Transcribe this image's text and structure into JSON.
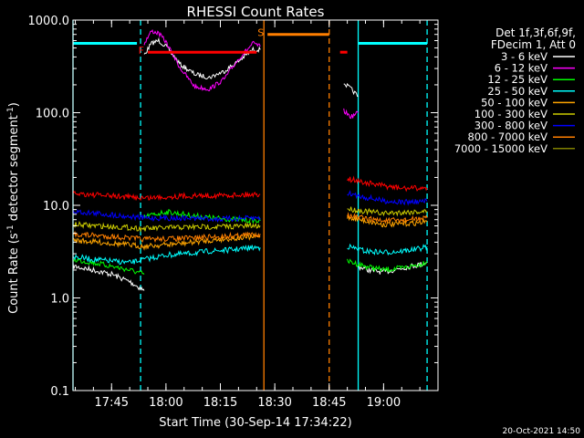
{
  "chart_data": {
    "type": "line",
    "title": "RHESSI Count Rates",
    "xlabel": "Start Time (30-Sep-14 17:34:22)",
    "ylabel_main": "Count Rate (s",
    "ylabel_sup": "-1",
    "ylabel_tail": " detector segment",
    "ylabel_sup2": "-1",
    "ylabel_close": ")",
    "y_scale": "log",
    "ylim": [
      0.1,
      1000
    ],
    "xlim": [
      "17:34:22",
      "19:15:00"
    ],
    "x_ticks": [
      {
        "t": "17:45",
        "label": "17:45"
      },
      {
        "t": "18:00",
        "label": "18:00"
      },
      {
        "t": "18:15",
        "label": "18:15"
      },
      {
        "t": "18:30",
        "label": "18:30"
      },
      {
        "t": "18:45",
        "label": "18:45"
      },
      {
        "t": "19:00",
        "label": "19:00"
      }
    ],
    "y_ticks": [
      {
        "v": 0.1,
        "label": "0.1"
      },
      {
        "v": 1.0,
        "label": "1.0"
      },
      {
        "v": 10.0,
        "label": "10.0"
      },
      {
        "v": 100.0,
        "label": "100.0"
      },
      {
        "v": 1000.0,
        "label": "1000.0"
      }
    ],
    "legend_header": [
      "Det 1f,3f,6f,9f,",
      "FDecim 1, Att 0"
    ],
    "legend_placement": "right",
    "footer": "20-Oct-2021 14:50",
    "series": [
      {
        "name": "3 - 6 keV",
        "color": "#ffffff",
        "segments": [
          {
            "x": [
              "17:34:22",
              "17:40",
              "17:45",
              "17:50",
              "17:54"
            ],
            "y": [
              2.2,
              2.0,
              1.8,
              1.5,
              1.2
            ]
          },
          {
            "x": [
              "17:54",
              "17:56",
              "17:58",
              "18:00",
              "18:04",
              "18:08",
              "18:12",
              "18:16",
              "18:20",
              "18:24",
              "18:26"
            ],
            "y": [
              420,
              560,
              600,
              520,
              330,
              260,
              240,
              280,
              360,
              480,
              480
            ]
          },
          {
            "x": [
              "18:49",
              "18:51",
              "18:53"
            ],
            "y": [
              210,
              180,
              150
            ]
          },
          {
            "x": [
              "18:53",
              "18:56",
              "19:00",
              "19:05",
              "19:10",
              "19:12"
            ],
            "y": [
              2.2,
              2.0,
              1.9,
              2.1,
              2.3,
              2.4
            ]
          }
        ]
      },
      {
        "name": "6 - 12 keV",
        "color": "#ff00ff",
        "segments": [
          {
            "x": [
              "17:54",
              "17:56",
              "17:58",
              "18:00",
              "18:04",
              "18:08",
              "18:12",
              "18:16",
              "18:20",
              "18:24",
              "18:26"
            ],
            "y": [
              560,
              760,
              720,
              580,
              300,
              190,
              180,
              230,
              380,
              560,
              520
            ]
          },
          {
            "x": [
              "18:49",
              "18:51",
              "18:53"
            ],
            "y": [
              105,
              90,
              100
            ]
          }
        ]
      },
      {
        "name": "12 - 25 keV",
        "color": "#00ff00",
        "segments": [
          {
            "x": [
              "17:34:22",
              "17:40",
              "17:45",
              "17:50",
              "17:54"
            ],
            "y": [
              2.6,
              2.4,
              2.2,
              2.0,
              1.8
            ]
          },
          {
            "x": [
              "17:54",
              "18:00",
              "18:05",
              "18:10",
              "18:15",
              "18:20",
              "18:26"
            ],
            "y": [
              7.5,
              8.5,
              8.0,
              7.5,
              7.2,
              7.0,
              6.8
            ]
          },
          {
            "x": [
              "18:50",
              "18:55",
              "19:00",
              "19:05",
              "19:10",
              "19:12"
            ],
            "y": [
              2.5,
              2.2,
              2.0,
              2.1,
              2.3,
              2.5
            ]
          }
        ]
      },
      {
        "name": "25 - 50 keV",
        "color": "#00ffff",
        "segments": [
          {
            "x": [
              "17:34:22",
              "17:40",
              "17:45",
              "17:50",
              "17:54",
              "18:00",
              "18:06",
              "18:12",
              "18:18",
              "18:24",
              "18:26"
            ],
            "y": [
              2.8,
              2.6,
              2.5,
              2.4,
              2.6,
              2.9,
              3.0,
              3.2,
              3.3,
              3.5,
              3.5
            ]
          },
          {
            "x": [
              "18:50",
              "18:55",
              "19:00",
              "19:05",
              "19:10",
              "19:12"
            ],
            "y": [
              3.6,
              3.2,
              3.1,
              3.2,
              3.4,
              3.6
            ]
          }
        ]
      },
      {
        "name": "50 - 100 keV",
        "color": "#ffa500",
        "segments": [
          {
            "x": [
              "17:34:22",
              "17:45",
              "17:54",
              "18:05",
              "18:15",
              "18:26"
            ],
            "y": [
              4.2,
              3.9,
              3.6,
              3.9,
              4.3,
              4.6
            ]
          },
          {
            "x": [
              "18:50",
              "18:55",
              "19:00",
              "19:05",
              "19:12"
            ],
            "y": [
              7.5,
              6.8,
              6.2,
              6.3,
              6.6
            ]
          }
        ]
      },
      {
        "name": "100 - 300 keV",
        "color": "#cccc00",
        "segments": [
          {
            "x": [
              "17:34:22",
              "17:45",
              "17:54",
              "18:05",
              "18:15",
              "18:26"
            ],
            "y": [
              6.2,
              5.9,
              5.6,
              5.8,
              5.9,
              6.0
            ]
          },
          {
            "x": [
              "18:50",
              "18:55",
              "19:00",
              "19:05",
              "19:12"
            ],
            "y": [
              9.2,
              8.6,
              8.2,
              8.4,
              8.6
            ]
          }
        ]
      },
      {
        "name": "300 - 800 keV",
        "color": "#0000ff",
        "segments": [
          {
            "x": [
              "17:34:22",
              "17:45",
              "17:54",
              "18:05",
              "18:15",
              "18:26"
            ],
            "y": [
              8.6,
              7.9,
              7.3,
              7.3,
              7.1,
              7.3
            ]
          },
          {
            "x": [
              "18:50",
              "18:55",
              "19:00",
              "19:05",
              "19:12"
            ],
            "y": [
              13.5,
              12.2,
              11.2,
              10.8,
              11.0
            ]
          }
        ]
      },
      {
        "name": "800 - 7000 keV",
        "color": "#ff7f00",
        "segments": [
          {
            "x": [
              "17:34:22",
              "17:45",
              "17:54",
              "18:05",
              "18:15",
              "18:26"
            ],
            "y": [
              4.9,
              4.6,
              4.3,
              4.4,
              4.6,
              4.9
            ]
          },
          {
            "x": [
              "18:50",
              "18:55",
              "19:00",
              "19:05",
              "19:12"
            ],
            "y": [
              7.8,
              7.2,
              6.8,
              6.9,
              7.3
            ]
          }
        ]
      },
      {
        "name": "7000 - 15000 keV",
        "color": "#808000",
        "segments": []
      },
      {
        "name": "",
        "color": "#ff0000",
        "segments": [
          {
            "x": [
              "17:34:22",
              "17:45",
              "17:54",
              "18:05",
              "18:15",
              "18:26"
            ],
            "y": [
              13.5,
              12.6,
              12.0,
              12.6,
              12.8,
              13.2
            ]
          },
          {
            "x": [
              "18:50",
              "18:55",
              "19:00",
              "19:05",
              "19:12"
            ],
            "y": [
              19.5,
              17.5,
              16.2,
              15.2,
              15.4
            ]
          }
        ]
      }
    ],
    "flags": [
      {
        "label": "",
        "color": "#00ffff",
        "x": [
          "17:34:22",
          "17:52"
        ],
        "y": 560
      },
      {
        "label": "F",
        "color": "#ff0000",
        "x": [
          "17:55",
          "18:25"
        ],
        "y": 450
      },
      {
        "label": "S",
        "color": "#ff7f00",
        "x": [
          "18:28",
          "18:45"
        ],
        "y": 700
      },
      {
        "label": "",
        "color": "#ff0000",
        "x": [
          "18:48",
          "18:50"
        ],
        "y": 450
      },
      {
        "label": "",
        "color": "#00ffff",
        "x": [
          "18:53",
          "19:12"
        ],
        "y": 560
      }
    ],
    "vertical_lines": [
      {
        "t": "17:34:22",
        "color": "#00ffff",
        "style": "solid"
      },
      {
        "t": "17:53",
        "color": "#00ffff",
        "style": "dashed"
      },
      {
        "t": "18:27",
        "color": "#ff7f00",
        "style": "solid"
      },
      {
        "t": "18:45",
        "color": "#ff7f00",
        "style": "dashed"
      },
      {
        "t": "18:53",
        "color": "#00ffff",
        "style": "solid"
      },
      {
        "t": "19:12",
        "color": "#00ffff",
        "style": "dashed"
      }
    ]
  }
}
